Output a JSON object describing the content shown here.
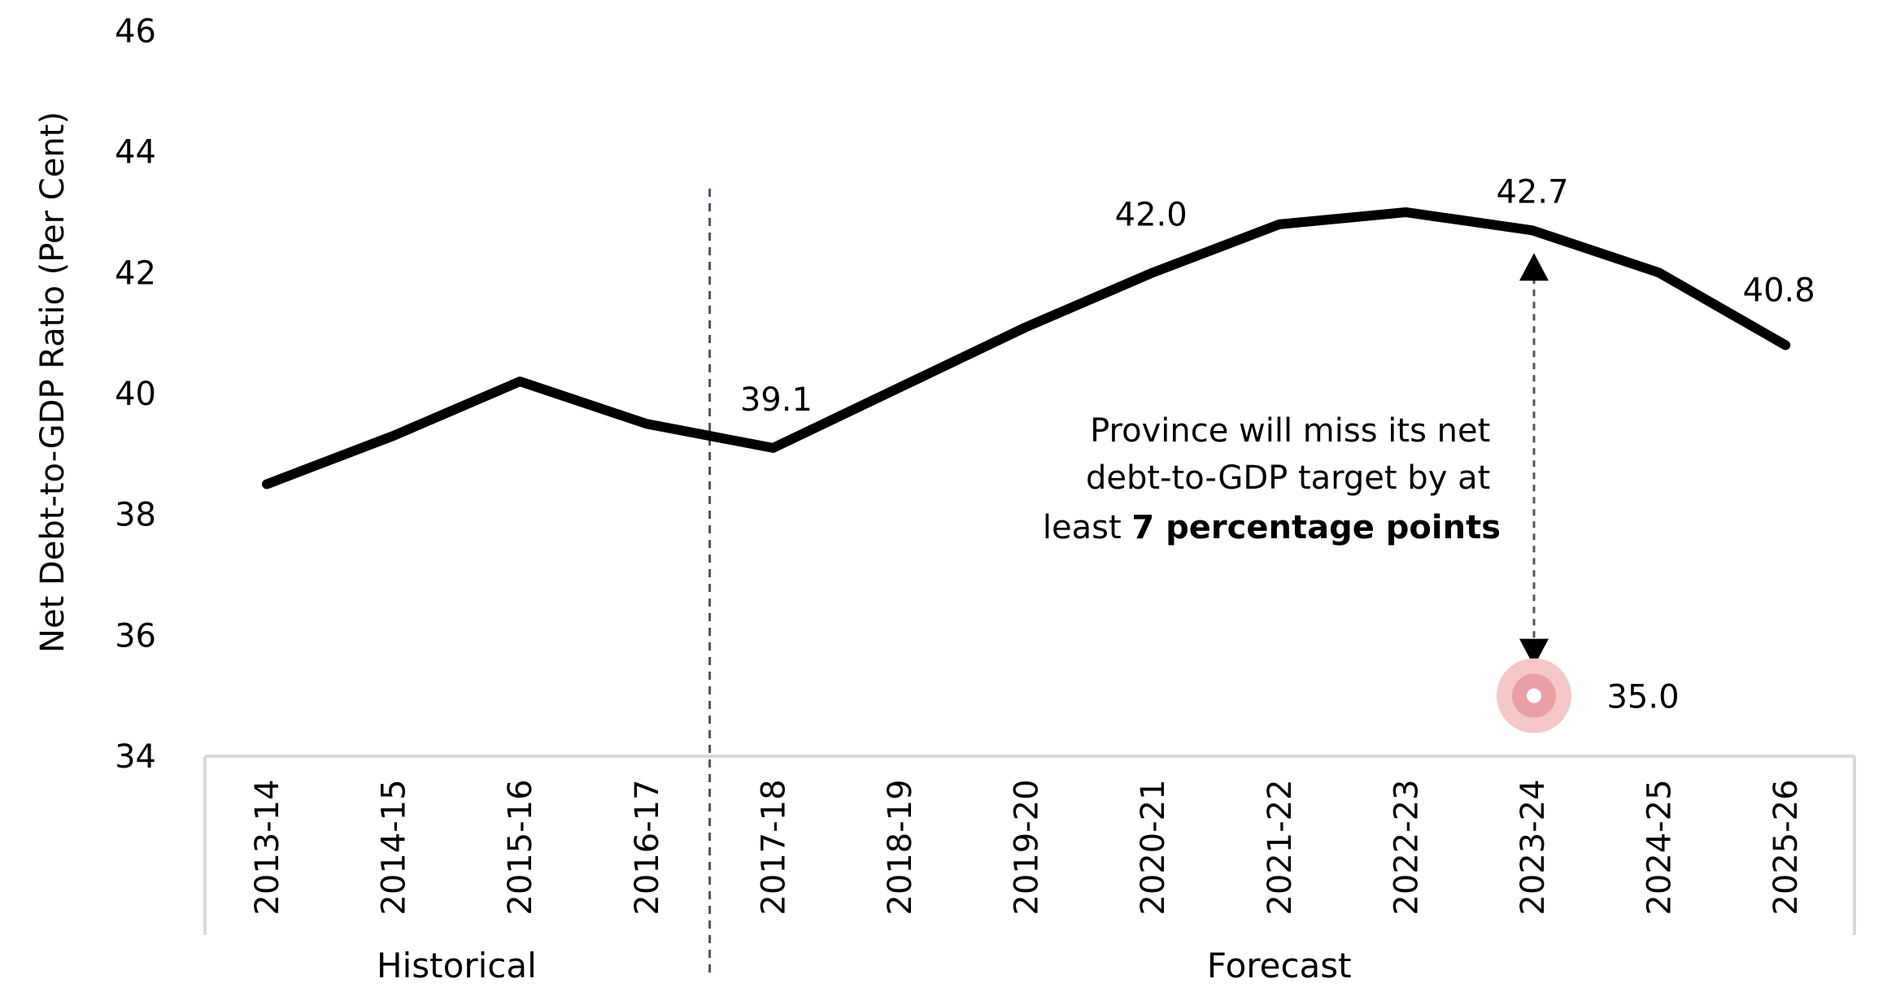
{
  "chart_data": {
    "type": "line",
    "ylabel": "Net Debt-to-GDP Ratio (Per Cent)",
    "xlabel": "",
    "ylim": [
      34,
      46
    ],
    "yticks": [
      34,
      36,
      38,
      40,
      42,
      44,
      46
    ],
    "grid": false,
    "categories": [
      "2013-14",
      "2014-15",
      "2015-16",
      "2016-17",
      "2017-18",
      "2018-19",
      "2019-20",
      "2020-21",
      "2021-22",
      "2022-23",
      "2023-24",
      "2024-25",
      "2025-26"
    ],
    "series": [
      {
        "values": [
          38.5,
          39.3,
          40.2,
          39.5,
          39.1,
          40.1,
          41.1,
          42.0,
          42.8,
          43.0,
          42.7,
          42.0,
          40.8
        ]
      }
    ],
    "data_labels": [
      {
        "category": "2017-18",
        "text": "39.1"
      },
      {
        "category": "2020-21",
        "text": "42.0"
      },
      {
        "category": "2023-24",
        "text": "42.7"
      },
      {
        "category": "2025-26",
        "text": "40.8"
      }
    ],
    "groups": [
      {
        "label": "Historical",
        "from": "2013-14",
        "to": "2016-17"
      },
      {
        "label": "Forecast",
        "from": "2017-18",
        "to": "2025-26"
      }
    ],
    "target": {
      "category": "2023-24",
      "value": 35.0,
      "text": "35.0"
    },
    "annotation": {
      "line1": "Province will miss its net",
      "line2": "debt-to-GDP target by at",
      "line3_prefix": "least ",
      "line3_bold": "7 percentage points"
    },
    "colors": {
      "line": "#000000",
      "divider": "#44546a",
      "axis_box": "#d9d9d9",
      "target_outer": "#f4c7c9",
      "target_inner": "#e9a0a4",
      "target_center": "#ffffff"
    }
  }
}
